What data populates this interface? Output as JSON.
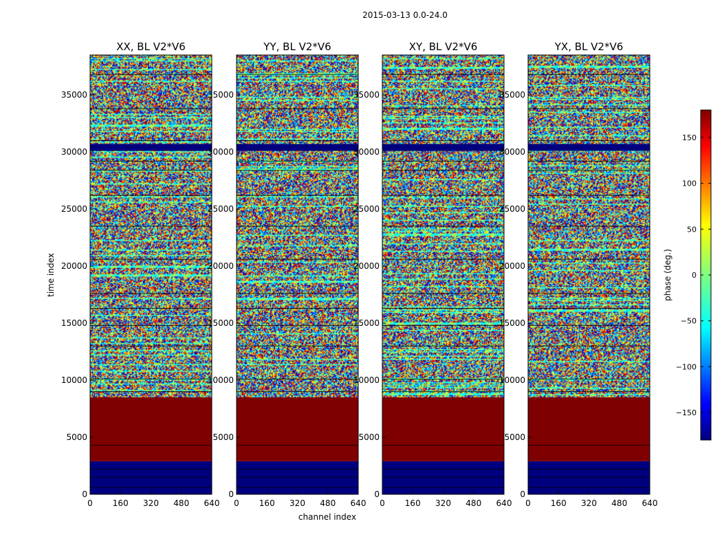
{
  "chart_data": {
    "type": "heatmap",
    "suptitle": "2015-03-13 0.0-24.0",
    "xlabel": "channel index",
    "ylabel": "time index",
    "xlim": [
      0,
      640
    ],
    "ylim": [
      0,
      38500
    ],
    "xticks": [
      0,
      160,
      320,
      480,
      640
    ],
    "yticks": [
      0,
      5000,
      10000,
      15000,
      20000,
      25000,
      30000,
      35000
    ],
    "panels": [
      {
        "title": "XX, BL V2*V6"
      },
      {
        "title": "YY, BL V2*V6"
      },
      {
        "title": "XY, BL V2*V6"
      },
      {
        "title": "YX, BL V2*V6"
      }
    ],
    "colorbar": {
      "label": "phase (deg.)",
      "range": [
        -180,
        180
      ],
      "ticks": [
        -150,
        -100,
        -50,
        0,
        50,
        100,
        150
      ],
      "tick_labels": [
        "−150",
        "−100",
        "−50",
        "0",
        "50",
        "100",
        "150"
      ],
      "colormap": "jet"
    },
    "bands": [
      {
        "from": 0,
        "to": 2900,
        "value": -180,
        "description": "flagged / constant"
      },
      {
        "from": 2900,
        "to": 8500,
        "value": 180,
        "description": "flagged / constant"
      },
      {
        "from": 30100,
        "to": 30700,
        "value": -180,
        "description": "flagged / constant"
      },
      {
        "from": 8500,
        "to": 38500,
        "value": "noise",
        "description": "random phase"
      }
    ]
  },
  "colors": {
    "low": "#00007f",
    "high": "#7f0000",
    "background": "#ffffff"
  }
}
